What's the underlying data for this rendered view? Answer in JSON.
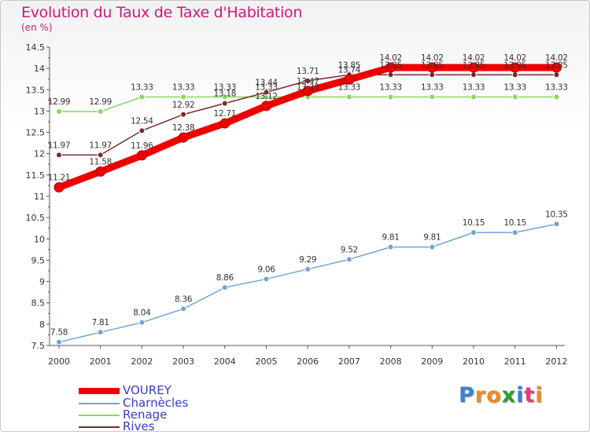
{
  "title": "Evolution du Taux de Taxe d'Habitation",
  "subtitle": "(en %)",
  "brand": {
    "letters": [
      "P",
      "r",
      "o",
      "x",
      "i",
      "t",
      "i"
    ],
    "colors": [
      "#3b7fd6",
      "#f08c1a",
      "#f08c1a",
      "#2ca02c",
      "#3b7fd6",
      "#e63b7a",
      "#f08c1a"
    ]
  },
  "chart_data": {
    "type": "line",
    "x": [
      2000,
      2001,
      2002,
      2003,
      2004,
      2005,
      2006,
      2007,
      2008,
      2009,
      2010,
      2011,
      2012
    ],
    "ylim": [
      7.5,
      14.5
    ],
    "yticks": [
      7.5,
      8,
      8.5,
      9,
      9.5,
      10,
      10.5,
      11,
      11.5,
      12,
      12.5,
      13,
      13.5,
      14,
      14.5
    ],
    "ytick_labels": [
      "7.5",
      "8",
      "8.5",
      "9",
      "9.5",
      "10",
      "10.5",
      "11",
      "11.5",
      "12",
      "12.5",
      "13",
      "13.5",
      "14",
      "14.5"
    ],
    "grid": false,
    "legend_position": "bottom-left",
    "series": [
      {
        "name": "VOUREY",
        "color": "#ee0000",
        "values": [
          11.21,
          11.58,
          11.96,
          12.38,
          12.71,
          13.12,
          13.47,
          13.74,
          14.02,
          14.02,
          14.02,
          14.02,
          14.02
        ],
        "labels": [
          "11.21",
          "11.58",
          "11.96",
          "12.38",
          "12.71",
          "13.12",
          "13.47",
          "13.74",
          "14.02",
          "14.02",
          "14.02",
          "14.02",
          "14.02"
        ]
      },
      {
        "name": "Charnècles",
        "color": "#6da5d8",
        "values": [
          7.58,
          7.81,
          8.04,
          8.36,
          8.86,
          9.06,
          9.29,
          9.52,
          9.81,
          9.81,
          10.15,
          10.15,
          10.35
        ],
        "labels": [
          "7.58",
          "7.81",
          "8.04",
          "8.36",
          "8.86",
          "9.06",
          "9.29",
          "9.52",
          "9.81",
          "9.81",
          "10.15",
          "10.15",
          "10.35"
        ]
      },
      {
        "name": "Renage",
        "color": "#88d860",
        "values": [
          12.99,
          12.99,
          13.33,
          13.33,
          13.33,
          13.33,
          13.33,
          13.33,
          13.33,
          13.33,
          13.33,
          13.33,
          13.33
        ],
        "labels": [
          "12.99",
          "12.99",
          "13.33",
          "13.33",
          "13.33",
          "13.33",
          "13.33",
          "13.33",
          "13.33",
          "13.33",
          "13.33",
          "13.33",
          "13.33"
        ]
      },
      {
        "name": "Rives",
        "color": "#7a2a2a",
        "values": [
          11.97,
          11.97,
          12.54,
          12.92,
          13.18,
          13.44,
          13.71,
          13.85,
          13.85,
          13.85,
          13.85,
          13.85,
          13.85
        ],
        "labels": [
          "11.97",
          "11.97",
          "12.54",
          "12.92",
          "13.18",
          "13.44",
          "13.71",
          "13.85",
          "13.85",
          "13.85",
          "13.85",
          "13.85",
          "13.85"
        ]
      }
    ]
  }
}
